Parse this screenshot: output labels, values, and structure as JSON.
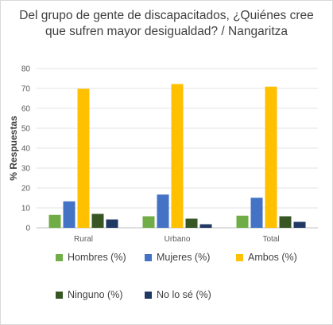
{
  "chart_data": {
    "type": "bar",
    "title_lines": [
      "Del grupo de gente de discapacitados, ¿Quiénes cree",
      "que sufren mayor desigualdad? / Nangaritza"
    ],
    "ylabel": "% Respuestas",
    "xlabel": "",
    "ylim": [
      0,
      80
    ],
    "yticks": [
      "0",
      "10",
      "20",
      "30",
      "40",
      "50",
      "60",
      "70",
      "80"
    ],
    "grid": true,
    "legend_position": "bottom",
    "categories": [
      "Rural",
      "Urbano",
      "Total"
    ],
    "series": [
      {
        "name": "Hombres (%)",
        "color": "#70ad47",
        "values": [
          6.5,
          5.8,
          6.1
        ]
      },
      {
        "name": "Mujeres (%)",
        "color": "#4472c4",
        "values": [
          13.3,
          16.7,
          15.1
        ]
      },
      {
        "name": "Ambos (%)",
        "color": "#ffc000",
        "values": [
          69.8,
          72.2,
          70.9
        ]
      },
      {
        "name": "Ninguno (%)",
        "color": "#375623",
        "values": [
          7.0,
          4.6,
          5.8
        ]
      },
      {
        "name": "No lo sé (%)",
        "color": "#203864",
        "values": [
          4.2,
          1.8,
          3.0
        ]
      }
    ]
  }
}
